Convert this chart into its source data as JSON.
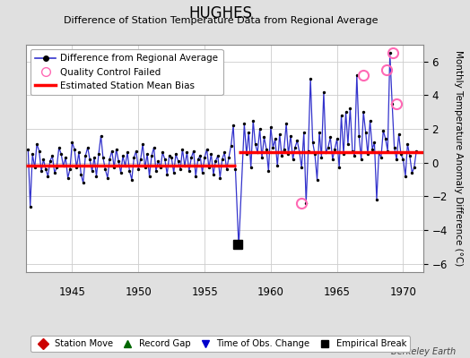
{
  "title": "HUGHES",
  "subtitle": "Difference of Station Temperature Data from Regional Average",
  "ylabel": "Monthly Temperature Anomaly Difference (°C)",
  "credit": "Berkeley Earth",
  "xlim": [
    1941.5,
    1971.5
  ],
  "ylim": [
    -6.5,
    7.0
  ],
  "yticks": [
    -6,
    -4,
    -2,
    0,
    2,
    4,
    6
  ],
  "xticks": [
    1945,
    1950,
    1955,
    1960,
    1965,
    1970
  ],
  "bg_color": "#e0e0e0",
  "plot_bg_color": "#ffffff",
  "grid_color": "#cccccc",
  "bias_segments": [
    {
      "x": [
        1941.5,
        1957.4
      ],
      "y": [
        -0.2,
        -0.2
      ]
    },
    {
      "x": [
        1957.6,
        1971.5
      ],
      "y": [
        0.6,
        0.6
      ]
    }
  ],
  "empirical_break_x": 1957.5,
  "empirical_break_y": -4.85,
  "qc_failed_points": [
    [
      1962.3,
      -2.4
    ],
    [
      1967.0,
      5.2
    ],
    [
      1968.75,
      5.5
    ],
    [
      1969.2,
      6.5
    ],
    [
      1969.5,
      3.5
    ]
  ],
  "series_color": "#3333cc",
  "bias_color": "#ff0000",
  "qc_color": "#ff69b4",
  "dot_color": "#000000",
  "times": [
    1941.67,
    1941.83,
    1942.0,
    1942.17,
    1942.33,
    1942.5,
    1942.67,
    1942.83,
    1943.0,
    1943.17,
    1943.33,
    1943.5,
    1943.67,
    1943.83,
    1944.0,
    1944.17,
    1944.33,
    1944.5,
    1944.67,
    1944.83,
    1945.0,
    1945.17,
    1945.33,
    1945.5,
    1945.67,
    1945.83,
    1946.0,
    1946.17,
    1946.33,
    1946.5,
    1946.67,
    1946.83,
    1947.0,
    1947.17,
    1947.33,
    1947.5,
    1947.67,
    1947.83,
    1948.0,
    1948.17,
    1948.33,
    1948.5,
    1948.67,
    1948.83,
    1949.0,
    1949.17,
    1949.33,
    1949.5,
    1949.67,
    1949.83,
    1950.0,
    1950.17,
    1950.33,
    1950.5,
    1950.67,
    1950.83,
    1951.0,
    1951.17,
    1951.33,
    1951.5,
    1951.67,
    1951.83,
    1952.0,
    1952.17,
    1952.33,
    1952.5,
    1952.67,
    1952.83,
    1953.0,
    1953.17,
    1953.33,
    1953.5,
    1953.67,
    1953.83,
    1954.0,
    1954.17,
    1954.33,
    1954.5,
    1954.67,
    1954.83,
    1955.0,
    1955.17,
    1955.33,
    1955.5,
    1955.67,
    1955.83,
    1956.0,
    1956.17,
    1956.33,
    1956.5,
    1956.67,
    1956.83,
    1957.0,
    1957.17,
    1957.33,
    1957.58,
    1958.0,
    1958.17,
    1958.33,
    1958.5,
    1958.67,
    1958.83,
    1959.0,
    1959.17,
    1959.33,
    1959.5,
    1959.67,
    1959.83,
    1960.0,
    1960.17,
    1960.33,
    1960.5,
    1960.67,
    1960.83,
    1961.0,
    1961.17,
    1961.33,
    1961.5,
    1961.67,
    1961.83,
    1962.0,
    1962.17,
    1962.33,
    1962.5,
    1962.67,
    1962.83,
    1963.0,
    1963.17,
    1963.33,
    1963.5,
    1963.67,
    1963.83,
    1964.0,
    1964.17,
    1964.33,
    1964.5,
    1964.67,
    1964.83,
    1965.0,
    1965.17,
    1965.33,
    1965.5,
    1965.67,
    1965.83,
    1966.0,
    1966.17,
    1966.33,
    1966.5,
    1966.67,
    1966.83,
    1967.0,
    1967.17,
    1967.33,
    1967.5,
    1967.67,
    1967.83,
    1968.0,
    1968.17,
    1968.33,
    1968.5,
    1968.67,
    1968.83,
    1969.0,
    1969.17,
    1969.33,
    1969.5,
    1969.67,
    1969.83,
    1970.0,
    1970.17,
    1970.33,
    1970.5,
    1970.67,
    1970.83,
    1971.0
  ],
  "values": [
    0.8,
    -2.6,
    0.5,
    -0.3,
    1.1,
    0.7,
    -0.5,
    0.2,
    -0.4,
    -0.8,
    0.1,
    0.4,
    -0.6,
    -0.3,
    0.9,
    0.5,
    -0.2,
    0.3,
    -0.9,
    -0.4,
    1.2,
    0.8,
    -0.3,
    0.6,
    -0.7,
    -1.2,
    0.4,
    0.9,
    0.2,
    -0.5,
    0.3,
    -0.8,
    0.5,
    1.6,
    0.3,
    -0.4,
    -0.9,
    0.2,
    0.7,
    -0.3,
    0.8,
    0.1,
    -0.6,
    0.4,
    -0.2,
    0.6,
    -0.5,
    -1.0,
    0.3,
    0.7,
    -0.4,
    0.2,
    1.1,
    -0.3,
    0.5,
    -0.8,
    0.4,
    0.9,
    -0.5,
    0.1,
    -0.3,
    0.6,
    0.2,
    -0.7,
    0.4,
    0.3,
    -0.6,
    0.5,
    0.1,
    -0.4,
    0.8,
    -0.2,
    0.6,
    -0.5,
    0.3,
    0.7,
    -0.8,
    0.2,
    0.4,
    -0.6,
    0.3,
    0.8,
    -0.3,
    0.5,
    -0.7,
    0.1,
    0.4,
    -0.9,
    0.2,
    0.6,
    -0.4,
    0.3,
    1.0,
    2.2,
    -0.4,
    -5.0,
    2.3,
    0.5,
    1.8,
    -0.3,
    2.5,
    1.1,
    0.6,
    2.0,
    0.3,
    1.5,
    0.8,
    -0.5,
    2.1,
    0.9,
    1.4,
    -0.2,
    1.7,
    0.4,
    0.8,
    2.3,
    0.5,
    1.6,
    0.2,
    0.9,
    1.3,
    0.6,
    -0.3,
    1.8,
    -2.4,
    0.7,
    5.0,
    1.2,
    0.5,
    -1.0,
    1.8,
    0.3,
    4.2,
    0.6,
    0.9,
    1.5,
    0.2,
    0.8,
    1.4,
    -0.3,
    2.8,
    0.5,
    3.0,
    1.1,
    3.2,
    0.7,
    0.4,
    5.2,
    1.6,
    0.2,
    3.0,
    1.8,
    0.5,
    2.5,
    0.8,
    1.2,
    -2.2,
    0.6,
    0.3,
    1.9,
    1.4,
    0.7,
    6.5,
    3.5,
    0.9,
    0.2,
    1.7,
    0.5,
    0.2,
    -0.8,
    1.1,
    0.4,
    -0.6,
    -0.3,
    0.7
  ]
}
